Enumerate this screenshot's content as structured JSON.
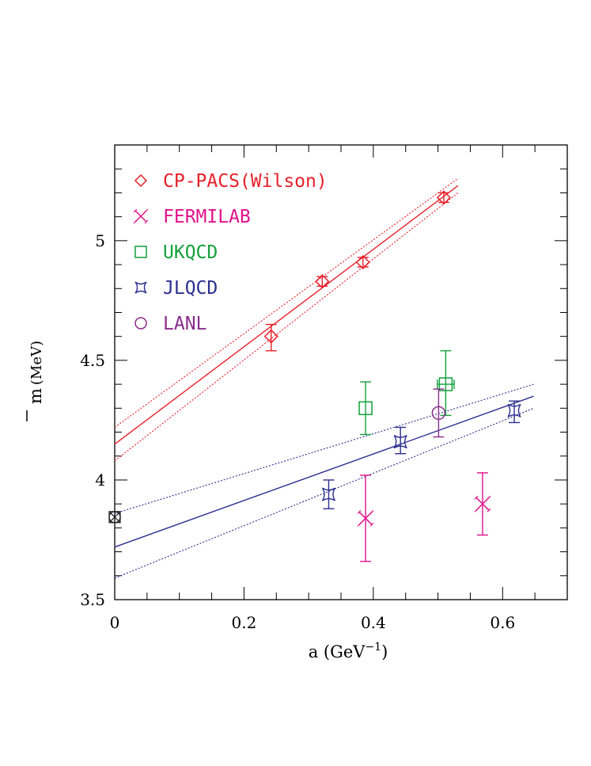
{
  "chart_data": {
    "type": "scatter",
    "xlabel": "a (GeV",
    "xlabel_exponent": "−1",
    "xlabel_close": ")",
    "ylabel_symbol": "m",
    "ylabel_unit": "(MeV)",
    "xlim": [
      0,
      0.7
    ],
    "ylim": [
      3.5,
      5.4
    ],
    "x_ticks": [
      {
        "value": 0,
        "label": "0"
      },
      {
        "value": 0.2,
        "label": "0.2"
      },
      {
        "value": 0.4,
        "label": "0.4"
      },
      {
        "value": 0.6,
        "label": "0.6"
      }
    ],
    "y_ticks": [
      {
        "value": 3.5,
        "label": "3.5"
      },
      {
        "value": 4,
        "label": "4"
      },
      {
        "value": 4.5,
        "label": "4.5"
      },
      {
        "value": 5,
        "label": "5"
      }
    ],
    "legend_position": "top-left",
    "series": [
      {
        "name": "CP-PACS(Wilson)",
        "marker": "diamond",
        "color": "#e8202a",
        "points": [
          {
            "x": 0.242,
            "y": 4.6,
            "yerr_lo": 0.06,
            "yerr_hi": 0.05,
            "xerr": 0
          },
          {
            "x": 0.321,
            "y": 4.83,
            "yerr_lo": 0.02,
            "yerr_hi": 0.02,
            "xerr": 0
          },
          {
            "x": 0.384,
            "y": 4.91,
            "yerr_lo": 0.02,
            "yerr_hi": 0.02,
            "xerr": 0
          },
          {
            "x": 0.509,
            "y": 5.18,
            "yerr_lo": 0.02,
            "yerr_hi": 0.02,
            "xerr": 0
          }
        ]
      },
      {
        "name": "FERMILAB",
        "marker": "cross",
        "color": "#e0138c",
        "points": [
          {
            "x": 0.388,
            "y": 3.84,
            "yerr_lo": 0.18,
            "yerr_hi": 0.18,
            "xerr": 0
          },
          {
            "x": 0.569,
            "y": 3.9,
            "yerr_lo": 0.13,
            "yerr_hi": 0.13,
            "xerr": 0
          }
        ]
      },
      {
        "name": "UKQCD",
        "marker": "square",
        "color": "#14a03c",
        "points": [
          {
            "x": 0.388,
            "y": 4.3,
            "yerr_lo": 0.11,
            "yerr_hi": 0.11,
            "xerr": 0
          },
          {
            "x": 0.512,
            "y": 4.4,
            "yerr_lo": 0.13,
            "yerr_hi": 0.14,
            "xerr": 0.013
          }
        ]
      },
      {
        "name": "JLQCD",
        "marker": "jl",
        "color": "#2b2f8f",
        "points": [
          {
            "x": 0.331,
            "y": 3.94,
            "yerr_lo": 0.06,
            "yerr_hi": 0.06,
            "xerr": 0
          },
          {
            "x": 0.442,
            "y": 4.16,
            "yerr_lo": 0.05,
            "yerr_hi": 0.06,
            "xerr": 0
          },
          {
            "x": 0.618,
            "y": 4.29,
            "yerr_lo": 0.05,
            "yerr_hi": 0.04,
            "xerr": 0
          }
        ]
      },
      {
        "name": "LANL",
        "marker": "circle",
        "color": "#8a2c8c",
        "points": [
          {
            "x": 0.501,
            "y": 4.28,
            "yerr_lo": 0.1,
            "yerr_hi": 0.1,
            "xerr": 0
          }
        ]
      }
    ],
    "fits": [
      {
        "name": "CP-PACS fit",
        "color": "#e8202a",
        "x0": 0,
        "x1": 0.531,
        "center": [
          4.15,
          5.23
        ],
        "upper": [
          4.22,
          5.26
        ],
        "lower": [
          4.08,
          5.2
        ]
      },
      {
        "name": "JLQCD fit",
        "color": "#2b2f8f",
        "x0": 0,
        "x1": 0.648,
        "center": [
          3.72,
          4.35
        ],
        "upper": [
          3.86,
          4.4
        ],
        "lower": [
          3.59,
          4.3
        ]
      }
    ],
    "extrapolated_point": {
      "x": 0,
      "y": 3.845,
      "color": "#222222"
    }
  }
}
